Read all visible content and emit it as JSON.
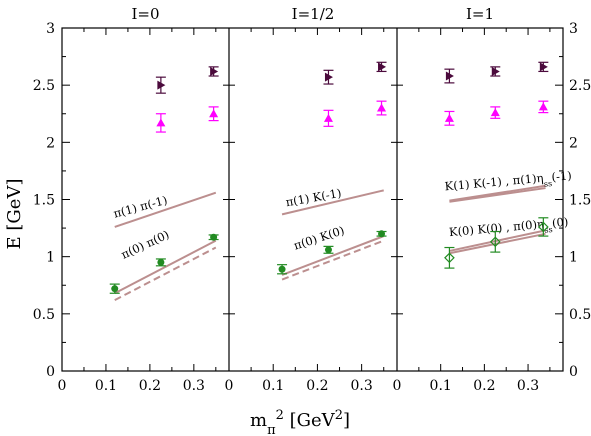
{
  "chart_data": {
    "type": "scatter",
    "ylabel": "E  [GeV]",
    "xlabel": "m_π^2 [GeV^2]",
    "ylim": [
      0,
      3
    ],
    "yticks": [
      0,
      0.5,
      1,
      1.5,
      2,
      2.5,
      3
    ],
    "ytick_labels": [
      "0",
      "0.5",
      "1",
      "1.5",
      "2",
      "2.5",
      "3"
    ],
    "xlim": [
      0,
      0.38
    ],
    "xticks": [
      0,
      0.1,
      0.2,
      0.3
    ],
    "xtick_labels": [
      "0",
      "0.1",
      "0.2",
      "0.3"
    ],
    "grid": false,
    "colors": {
      "green": "#228b22",
      "magenta": "#ff00ff",
      "purple": "#4b0a3c",
      "curve": "#bc8f8f"
    },
    "panels": [
      {
        "title": "I=0",
        "series": [
          {
            "marker": "circle",
            "color": "green",
            "x": [
              0.12,
              0.225,
              0.345
            ],
            "y": [
              0.72,
              0.95,
              1.17
            ],
            "err": [
              0.04,
              0.03,
              0.02
            ]
          },
          {
            "marker": "triangle-up",
            "color": "magenta",
            "x": [
              0.225,
              0.345
            ],
            "y": [
              2.17,
              2.25
            ],
            "err": [
              0.08,
              0.06
            ]
          },
          {
            "marker": "triangle-right",
            "color": "purple",
            "x": [
              0.225,
              0.345
            ],
            "y": [
              2.5,
              2.62
            ],
            "err": [
              0.07,
              0.04
            ]
          }
        ],
        "curves": [
          {
            "style": "solid",
            "x": [
              0.12,
              0.35
            ],
            "y": [
              1.26,
              1.56
            ]
          },
          {
            "style": "solid",
            "x": [
              0.12,
              0.35
            ],
            "y": [
              0.68,
              1.14
            ]
          },
          {
            "style": "dashed",
            "x": [
              0.12,
              0.35
            ],
            "y": [
              0.62,
              1.08
            ]
          }
        ],
        "annotations": [
          {
            "text": "π(1) π(-1)",
            "x": 0.12,
            "y": 1.34,
            "angle": -15
          },
          {
            "text": "π(0) π(0)",
            "x": 0.14,
            "y": 0.98,
            "angle": -25
          }
        ]
      },
      {
        "title": "I=1/2",
        "series": [
          {
            "marker": "circle",
            "color": "green",
            "x": [
              0.12,
              0.225,
              0.345
            ],
            "y": [
              0.89,
              1.06,
              1.2
            ],
            "err": [
              0.04,
              0.03,
              0.02
            ]
          },
          {
            "marker": "triangle-up",
            "color": "magenta",
            "x": [
              0.225,
              0.345
            ],
            "y": [
              2.21,
              2.3
            ],
            "err": [
              0.07,
              0.06
            ]
          },
          {
            "marker": "triangle-right",
            "color": "purple",
            "x": [
              0.225,
              0.345
            ],
            "y": [
              2.57,
              2.66
            ],
            "err": [
              0.06,
              0.04
            ]
          }
        ],
        "curves": [
          {
            "style": "solid",
            "x": [
              0.12,
              0.35
            ],
            "y": [
              1.37,
              1.58
            ]
          },
          {
            "style": "solid",
            "x": [
              0.12,
              0.35
            ],
            "y": [
              0.84,
              1.18
            ]
          },
          {
            "style": "dashed",
            "x": [
              0.12,
              0.35
            ],
            "y": [
              0.8,
              1.14
            ]
          }
        ],
        "annotations": [
          {
            "text": "π(1) K(-1)",
            "x": 0.13,
            "y": 1.44,
            "angle": -10
          },
          {
            "text": "π(0) K(0)",
            "x": 0.15,
            "y": 1.06,
            "angle": -18
          }
        ]
      },
      {
        "title": "I=1",
        "series": [
          {
            "marker": "diamond-open",
            "color": "green",
            "x": [
              0.12,
              0.225,
              0.335
            ],
            "y": [
              0.99,
              1.13,
              1.26
            ],
            "err": [
              0.09,
              0.09,
              0.08
            ]
          },
          {
            "marker": "triangle-up",
            "color": "magenta",
            "x": [
              0.12,
              0.225,
              0.335
            ],
            "y": [
              2.21,
              2.26,
              2.31
            ],
            "err": [
              0.06,
              0.05,
              0.05
            ]
          },
          {
            "marker": "triangle-right",
            "color": "purple",
            "x": [
              0.12,
              0.225,
              0.335
            ],
            "y": [
              2.58,
              2.62,
              2.66
            ],
            "err": [
              0.06,
              0.04,
              0.04
            ]
          }
        ],
        "curves": [
          {
            "style": "solid",
            "x": [
              0.12,
              0.34
            ],
            "y": [
              1.49,
              1.62
            ]
          },
          {
            "style": "solid",
            "x": [
              0.12,
              0.34
            ],
            "y": [
              1.48,
              1.6
            ]
          },
          {
            "style": "solid",
            "x": [
              0.12,
              0.34
            ],
            "y": [
              1.05,
              1.23
            ]
          },
          {
            "style": "solid",
            "x": [
              0.12,
              0.34
            ],
            "y": [
              1.03,
              1.2
            ]
          }
        ],
        "annotations": [
          {
            "text": "K(1) K(-1) ,  π(1)η",
            "sub": "ss",
            "tail": "(-1)",
            "x": 0.11,
            "y": 1.58,
            "angle": -5
          },
          {
            "text": "K(0) K(0) ,  π(0)η",
            "sub": "ss",
            "tail": "(0)",
            "x": 0.12,
            "y": 1.18,
            "angle": -5
          }
        ]
      }
    ]
  }
}
